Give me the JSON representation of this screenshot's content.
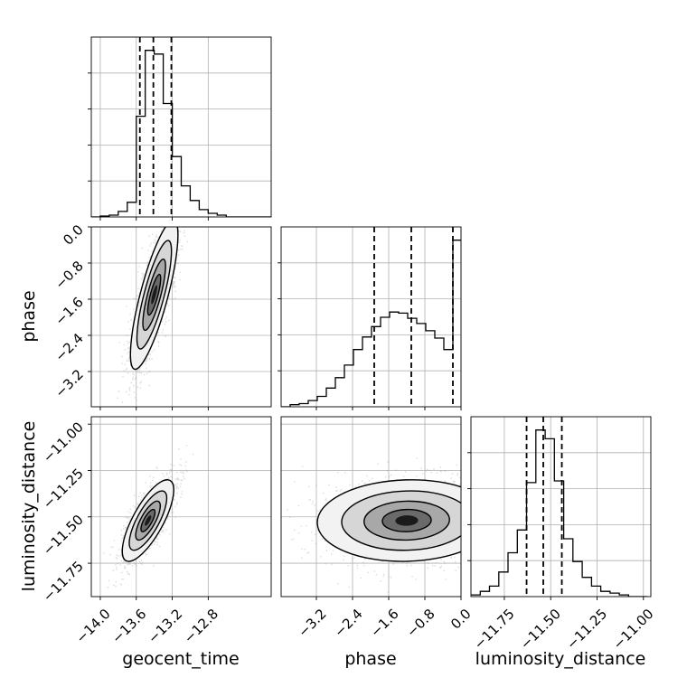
{
  "chart_data": {
    "type": "corner",
    "parameters": [
      {
        "name": "geocent_time",
        "label": "geocent_time",
        "range": [
          -14.1,
          -12.1
        ],
        "ticks": [
          -14.0,
          -13.6,
          -13.2,
          -12.8
        ],
        "tick_labels": [
          "−14.0",
          "−13.6",
          "−13.2",
          "−12.8"
        ],
        "quantiles": [
          -13.56,
          -13.41,
          -13.21
        ]
      },
      {
        "name": "phase",
        "label": "phase",
        "range": [
          -3.98,
          0.0
        ],
        "ticks": [
          -3.2,
          -2.4,
          -1.6,
          -0.8,
          0.0
        ],
        "tick_labels": [
          "−3.2",
          "−2.4",
          "−1.6",
          "−0.8",
          "0.0"
        ],
        "quantiles": [
          -1.92,
          -1.1,
          -0.18
        ]
      },
      {
        "name": "luminosity_distance",
        "label": "luminosity_distance",
        "range": [
          -11.93,
          -10.96
        ],
        "ticks": [
          -11.75,
          -11.5,
          -11.25,
          -11.0
        ],
        "tick_labels": [
          "−11.75",
          "−11.50",
          "−11.25",
          "−11.00"
        ],
        "quantiles": [
          -11.63,
          -11.54,
          -11.44
        ]
      }
    ],
    "histograms": {
      "geocent_time": {
        "bin_edges": [
          -14.1,
          -14.0,
          -13.9,
          -13.8,
          -13.7,
          -13.6,
          -13.5,
          -13.4,
          -13.3,
          -13.2,
          -13.1,
          -13.0,
          -12.9,
          -12.8,
          -12.7,
          -12.6,
          -12.5,
          -12.4,
          -12.3,
          -12.2,
          -12.1
        ],
        "counts": [
          0,
          0.5,
          1,
          3,
          8,
          55,
          91,
          89,
          62,
          33,
          17,
          9,
          4,
          2,
          1,
          0,
          0,
          0,
          0,
          0
        ]
      },
      "phase": {
        "bin_edges": [
          -3.98,
          -3.78,
          -3.58,
          -3.38,
          -3.18,
          -2.98,
          -2.78,
          -2.58,
          -2.38,
          -2.18,
          -1.98,
          -1.78,
          -1.58,
          -1.38,
          -1.18,
          -0.98,
          -0.78,
          -0.58,
          -0.38,
          -0.18,
          0.0
        ],
        "counts": [
          0,
          2,
          3,
          6,
          10,
          18,
          28,
          40,
          55,
          67,
          77,
          86,
          91,
          90,
          85,
          80,
          73,
          66,
          55,
          160
        ]
      },
      "luminosity_distance": {
        "bin_edges": [
          -11.93,
          -11.88,
          -11.83,
          -11.78,
          -11.73,
          -11.68,
          -11.63,
          -11.58,
          -11.53,
          -11.48,
          -11.43,
          -11.38,
          -11.33,
          -11.28,
          -11.23,
          -11.18,
          -11.13,
          -11.08,
          -11.03,
          -10.98
        ],
        "counts": [
          1,
          3,
          6,
          14,
          25,
          38,
          65,
          95,
          90,
          66,
          33,
          20,
          11,
          6,
          3,
          2,
          1,
          0,
          0
        ]
      }
    },
    "pairs": [
      {
        "x": "geocent_time",
        "y": "phase",
        "center": [
          -13.4,
          -1.5
        ],
        "sigma": [
          0.12,
          0.75
        ],
        "rho": 0.8
      },
      {
        "x": "geocent_time",
        "y": "luminosity_distance",
        "center": [
          -13.47,
          -11.52
        ],
        "sigma": [
          0.13,
          0.1
        ],
        "rho": 0.75
      },
      {
        "x": "phase",
        "y": "luminosity_distance",
        "center": [
          -1.2,
          -11.52
        ],
        "sigma": [
          0.9,
          0.1
        ],
        "rho": 0.05
      }
    ],
    "colors": {
      "line": "#000000",
      "grid": "#b0b0b0",
      "scatter": "#9a9a9a"
    }
  }
}
